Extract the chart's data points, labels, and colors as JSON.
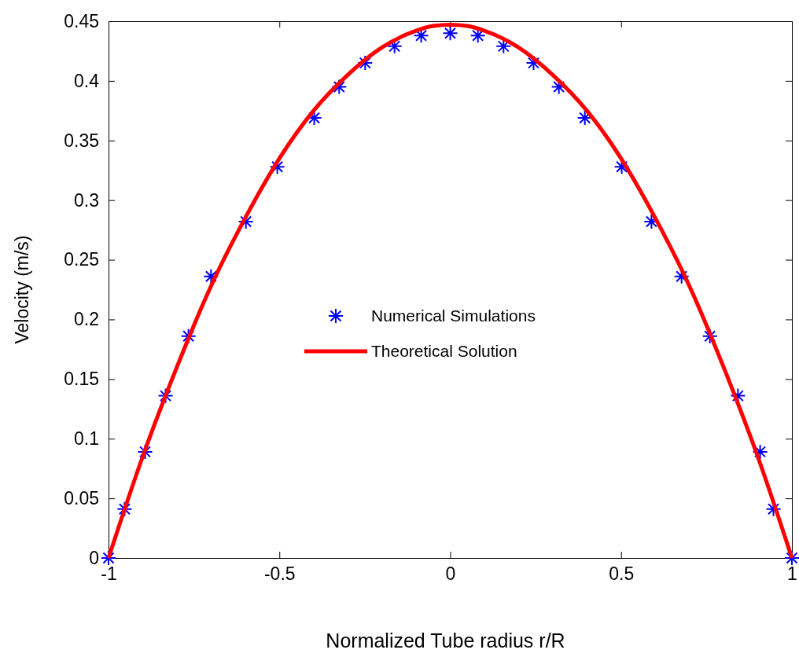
{
  "chart_data": {
    "type": "line",
    "xlabel": "Normalized Tube radius r/R",
    "ylabel": "Velocity (m/s)",
    "xlim": [
      -1,
      1
    ],
    "xticks": [
      -1,
      -0.5,
      0,
      0.5,
      1
    ],
    "ylim": [
      0,
      0.45
    ],
    "yticks": [
      0,
      0.05,
      0.1,
      0.15,
      0.2,
      0.25,
      0.3,
      0.35,
      0.4,
      0.45
    ],
    "grid": false,
    "legend": "center",
    "series": [
      {
        "name": "Numerical Simulations",
        "type": "scatter",
        "marker": "cross",
        "color": "#0000ff",
        "x": [
          -1,
          -0.953,
          -0.893,
          -0.833,
          -0.766,
          -0.7,
          -0.598,
          -0.506,
          -0.398,
          -0.325,
          -0.249,
          -0.163,
          -0.085,
          0,
          0.081,
          0.156,
          0.244,
          0.318,
          0.394,
          0.502,
          0.589,
          0.677,
          0.76,
          0.842,
          0.907,
          0.946,
          1
        ],
        "values": [
          0,
          0.041,
          0.089,
          0.136,
          0.186,
          0.236,
          0.282,
          0.328,
          0.369,
          0.395,
          0.415,
          0.429,
          0.438,
          0.44,
          0.438,
          0.429,
          0.415,
          0.395,
          0.369,
          0.328,
          0.282,
          0.236,
          0.186,
          0.136,
          0.089,
          0.041,
          0
        ]
      },
      {
        "name": "Theoretical Solution",
        "marker": "none",
        "line_style": "solid",
        "color": "#ff0000",
        "x": [
          -1,
          -0.9,
          -0.8,
          -0.7,
          -0.6,
          -0.5,
          -0.4,
          -0.3,
          -0.2,
          -0.1,
          -0.05,
          0,
          0.05,
          0.1,
          0.2,
          0.3,
          0.4,
          0.5,
          0.6,
          0.7,
          0.8,
          0.9,
          1
        ],
        "values": [
          0,
          0.085,
          0.16,
          0.228,
          0.285,
          0.335,
          0.375,
          0.405,
          0.428,
          0.442,
          0.446,
          0.447,
          0.446,
          0.442,
          0.428,
          0.405,
          0.375,
          0.335,
          0.285,
          0.228,
          0.16,
          0.085,
          0
        ]
      }
    ]
  }
}
